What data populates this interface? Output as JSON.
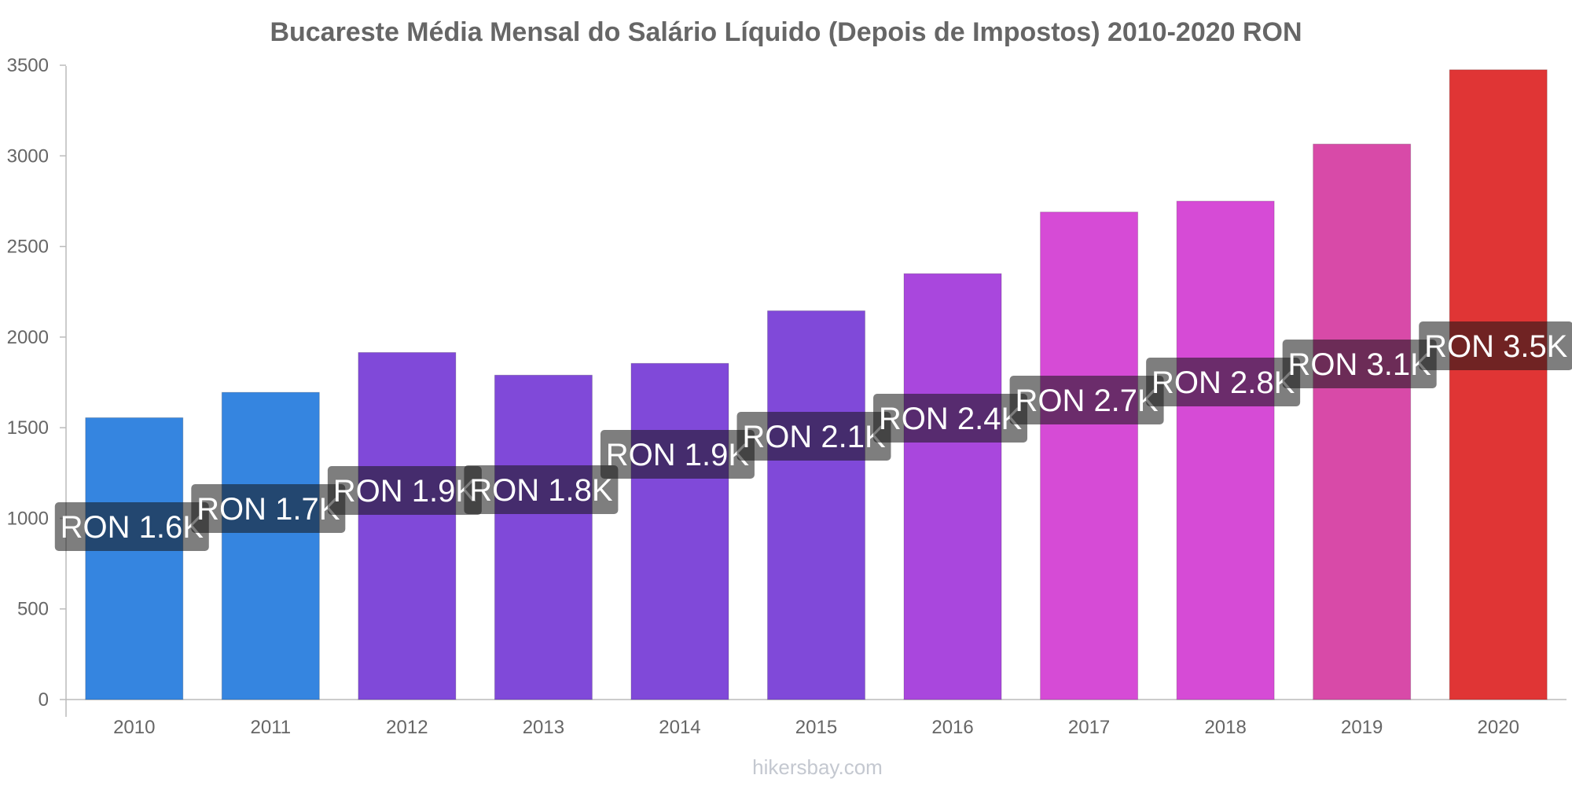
{
  "chart_data": {
    "type": "bar",
    "title": "Bucareste Média Mensal do Salário Líquido (Depois de Impostos) 2010-2020 RON",
    "xlabel": "",
    "ylabel": "",
    "ylim": [
      0,
      3500
    ],
    "yticks": [
      0,
      500,
      1000,
      1500,
      2000,
      2500,
      3000,
      3500
    ],
    "categories": [
      "2010",
      "2011",
      "2012",
      "2013",
      "2014",
      "2015",
      "2016",
      "2017",
      "2018",
      "2019",
      "2020"
    ],
    "values": [
      1555,
      1695,
      1915,
      1790,
      1855,
      2145,
      2350,
      2690,
      2750,
      3065,
      3475
    ],
    "data_labels": [
      "RON 1.6K",
      "RON 1.7K",
      "RON 1.9K",
      "RON 1.8K",
      "RON 1.9K",
      "RON 2.1K",
      "RON 2.4K",
      "RON 2.7K",
      "RON 2.8K",
      "RON 3.1K",
      "RON 3.5K"
    ],
    "colors": [
      "#3585e0",
      "#3585e0",
      "#8049d9",
      "#8049d9",
      "#8049d9",
      "#8049d9",
      "#a947dd",
      "#d64bd6",
      "#d64bd6",
      "#d84aa8",
      "#e03535"
    ],
    "grid": false,
    "legend": "none"
  },
  "watermark": "hikersbay.com"
}
